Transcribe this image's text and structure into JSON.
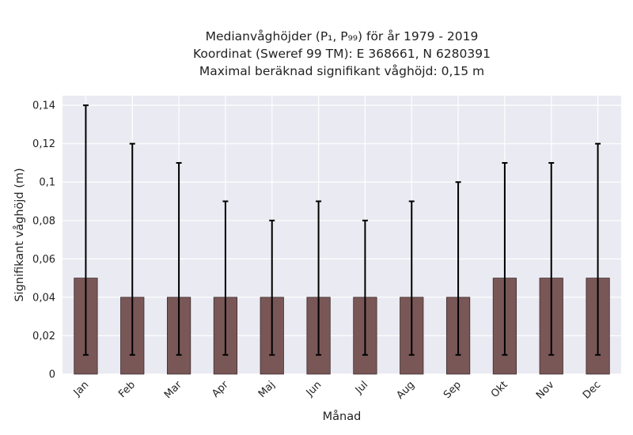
{
  "chart_data": {
    "type": "bar",
    "title_lines": [
      "Medianvåghöjder (P₁, P₉₉) för år 1979 - 2019",
      "Koordinat (Sweref 99 TM): E 368661, N 6280391",
      "Maximal beräknad signifikant våghöjd: 0,15 m"
    ],
    "xlabel": "Månad",
    "ylabel": "Signifikant våghöjd (m)",
    "categories": [
      "Jan",
      "Feb",
      "Mar",
      "Apr",
      "Maj",
      "Jun",
      "Jul",
      "Aug",
      "Sep",
      "Okt",
      "Nov",
      "Dec"
    ],
    "series": [
      {
        "values": [
          0.05,
          0.04,
          0.04,
          0.04,
          0.04,
          0.04,
          0.04,
          0.04,
          0.04,
          0.05,
          0.05,
          0.05
        ],
        "p1": [
          0.01,
          0.01,
          0.01,
          0.01,
          0.01,
          0.01,
          0.01,
          0.01,
          0.01,
          0.01,
          0.01,
          0.01
        ],
        "p99": [
          0.14,
          0.12,
          0.11,
          0.09,
          0.08,
          0.09,
          0.08,
          0.09,
          0.1,
          0.11,
          0.11,
          0.12
        ]
      }
    ],
    "ylim": [
      0,
      0.145
    ],
    "yticks": [
      0,
      0.02,
      0.04,
      0.06,
      0.08,
      0.1,
      0.12,
      0.14
    ],
    "ytick_labels": [
      "0",
      "0,02",
      "0,04",
      "0,06",
      "0,08",
      "0,1",
      "0,12",
      "0,14"
    ],
    "grid": true,
    "colors": {
      "bar": "#7a5757",
      "bar_edge": "#3a2a2a",
      "errorbar": "#000000",
      "plot_background": "#eaeaf2",
      "grid": "#ffffff"
    }
  }
}
